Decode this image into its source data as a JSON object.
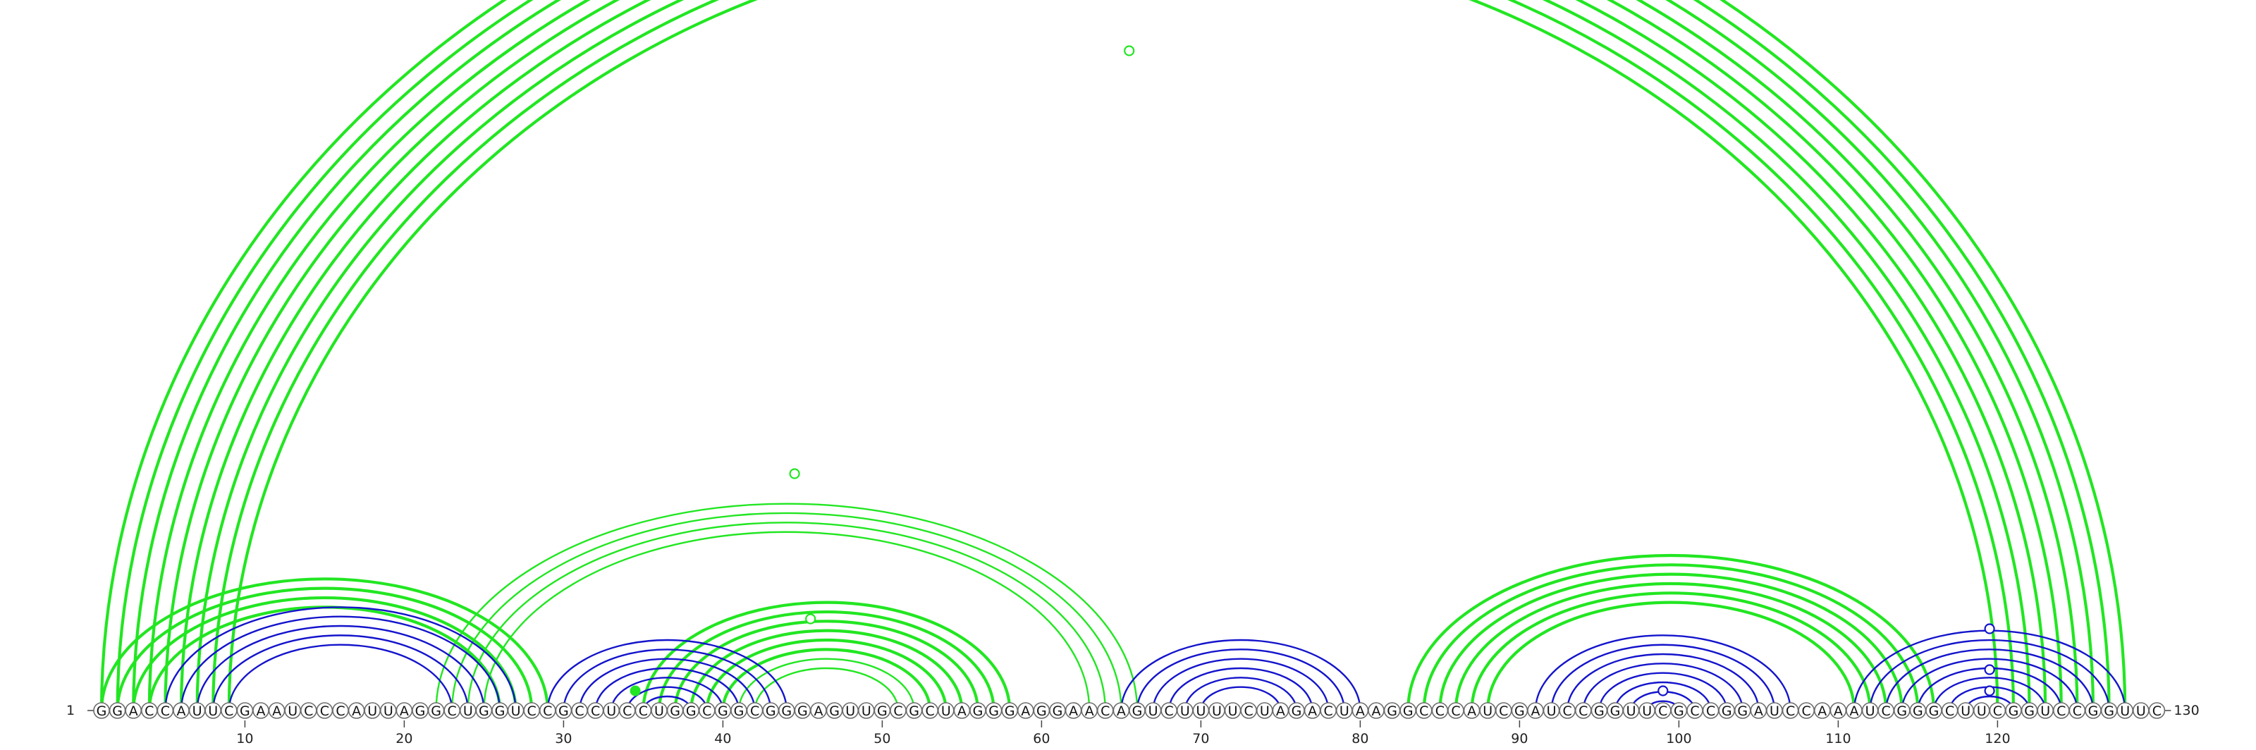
{
  "sequence": "GGACCAUUCGAAUCCCAUUAGGCUGGUCCGCCUCCUGGCGGCGGGAGUUGCGCUAGGGAGGAACAGUCUUUUCUAGACUAAGGCCCAUCGAUCCGGUUCGCCGGAUCCAAAUCGGGCUUCGGUCCGGUUC",
  "start_label": "1",
  "end_label": "130",
  "axis_ticks": [
    10,
    20,
    30,
    40,
    50,
    60,
    70,
    80,
    90,
    100,
    110,
    120
  ],
  "colors": {
    "green": "#22e622",
    "blue": "#1414cc"
  },
  "chart_data": {
    "type": "arc-diagram",
    "length": 130,
    "green_helices": [
      {
        "i": [
          1,
          2,
          3,
          4,
          5,
          6
        ],
        "j": [
          128,
          127,
          126,
          125,
          124,
          123
        ],
        "thick": true
      },
      {
        "i": [
          7,
          8,
          9
        ],
        "j": [
          122,
          121,
          120
        ],
        "thick": true
      },
      {
        "i": [
          1,
          2,
          3,
          4
        ],
        "j": [
          29,
          28,
          27,
          26
        ],
        "thick": true
      },
      {
        "i": [
          22,
          23,
          24,
          25
        ],
        "j": [
          66,
          65,
          64,
          63
        ],
        "thick": false
      },
      {
        "i": [
          35,
          36,
          37,
          38,
          39,
          40
        ],
        "j": [
          58,
          57,
          56,
          55,
          54,
          53
        ],
        "thick": true
      },
      {
        "i": [
          41,
          42
        ],
        "j": [
          52,
          51
        ],
        "thick": false
      },
      {
        "i": [
          83,
          84,
          85,
          86,
          87,
          88
        ],
        "j": [
          116,
          115,
          114,
          113,
          112,
          111
        ],
        "thick": true
      }
    ],
    "blue_helices": [
      {
        "i": [
          5,
          6,
          7,
          8,
          9
        ],
        "j": [
          27,
          26,
          25,
          24,
          23
        ]
      },
      {
        "i": [
          29,
          30,
          31,
          32,
          33,
          34,
          35
        ],
        "j": [
          44,
          43,
          42,
          41,
          40,
          39,
          38
        ]
      },
      {
        "i": [
          65,
          66,
          67,
          68,
          69,
          70
        ],
        "j": [
          80,
          79,
          78,
          77,
          76,
          75
        ]
      },
      {
        "i": [
          91,
          92,
          93,
          94,
          95,
          96,
          97,
          98
        ],
        "j": [
          107,
          106,
          105,
          104,
          103,
          102,
          101,
          100
        ]
      },
      {
        "i": [
          111,
          112,
          113,
          114,
          115,
          116,
          117,
          118
        ],
        "j": [
          128,
          127,
          126,
          125,
          124,
          123,
          122,
          121
        ]
      }
    ],
    "markers": [
      {
        "pos": 65.5,
        "level": "outer",
        "color": "green"
      },
      {
        "pos": 44.5,
        "level": "mid",
        "color": "green"
      },
      {
        "pos": 45.5,
        "level": "inner",
        "color": "green"
      },
      {
        "pos": 99,
        "level": "small",
        "color": "blue"
      },
      {
        "pos": 119.5,
        "level": "blue-top",
        "color": "blue"
      }
    ]
  }
}
